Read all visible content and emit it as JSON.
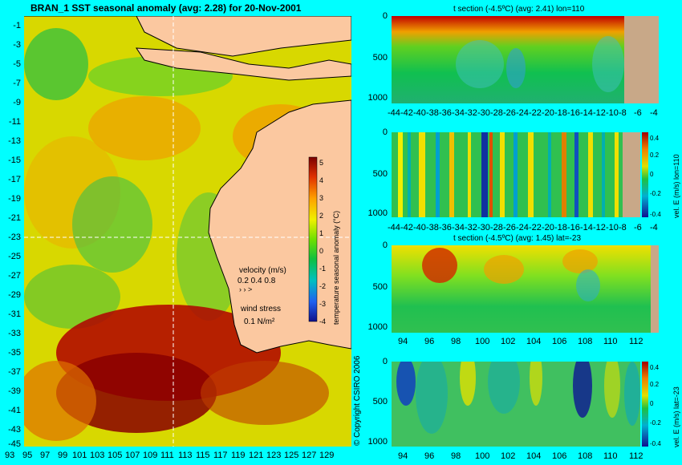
{
  "map": {
    "title": "BRAN_1 SST seasonal anomaly (avg: 2.28) for 20-Nov-2001",
    "lat_ticks": [
      "-1",
      "-3",
      "-5",
      "-7",
      "-9",
      "-11",
      "-13",
      "-15",
      "-17",
      "-19",
      "-21",
      "-23",
      "-25",
      "-27",
      "-29",
      "-31",
      "-33",
      "-35",
      "-37",
      "-39",
      "-41",
      "-43",
      "-45"
    ],
    "lon_ticks": [
      "93",
      "95",
      "97",
      "99",
      "101",
      "103",
      "105",
      "107",
      "109",
      "111",
      "113",
      "115",
      "117",
      "119",
      "121",
      "123",
      "125",
      "127",
      "129"
    ],
    "colorbar": {
      "label": "temperature seasonal anomaly (°C)",
      "ticks": [
        "5",
        "4",
        "3",
        "2",
        "1",
        "0",
        "-1",
        "-2",
        "-3",
        "-4"
      ]
    },
    "velocity_legend": {
      "title": "velocity (m/s)",
      "values": "0.2 0.4 0.8"
    },
    "wind_legend": {
      "title": "wind stress",
      "value": "0.1 N/m²"
    },
    "copyright": "© Copyright CSIRO 2006",
    "colors": {
      "land": "#fbc8a0",
      "warm": "#c00000",
      "neutral": "#d8e000",
      "cool": "#10c040",
      "cold": "#1a2a9a"
    }
  },
  "chart_data": [
    {
      "type": "heatmap",
      "title": "t section (-4.5ºC) (avg: 2.41) lon=110",
      "x_ticks": [
        "-44",
        "-42",
        "-40",
        "-38",
        "-36",
        "-34",
        "-32",
        "-30",
        "-28",
        "-26",
        "-24",
        "-22",
        "-20",
        "-18",
        "-16",
        "-14",
        "-12",
        "-10",
        "-8",
        "-6",
        "-4"
      ],
      "y_ticks": [
        "0",
        "500",
        "1000"
      ],
      "xlim": [
        -45,
        -3
      ],
      "ylim": [
        1050,
        0
      ]
    },
    {
      "type": "heatmap",
      "title": "",
      "x_ticks": [
        "-44",
        "-42",
        "-40",
        "-38",
        "-36",
        "-34",
        "-32",
        "-30",
        "-28",
        "-26",
        "-24",
        "-22",
        "-20",
        "-18",
        "-16",
        "-14",
        "-12",
        "-10",
        "-8",
        "-6",
        "-4"
      ],
      "y_ticks": [
        "0",
        "500",
        "1000"
      ],
      "colorbar_label": "vel. E (m/s) lon=110",
      "colorbar_ticks": [
        "0.4",
        "0.2",
        "0",
        "-0.2",
        "-0.4"
      ],
      "xlim": [
        -45,
        -3
      ],
      "ylim": [
        1050,
        0
      ]
    },
    {
      "type": "heatmap",
      "title": "t section (-4.5ºC) (avg: 1.45) lat=-23",
      "x_ticks": [
        "94",
        "96",
        "98",
        "100",
        "102",
        "104",
        "106",
        "108",
        "110",
        "112"
      ],
      "y_ticks": [
        "0",
        "500",
        "1000"
      ],
      "xlim": [
        93,
        114
      ],
      "ylim": [
        1050,
        0
      ]
    },
    {
      "type": "heatmap",
      "title": "",
      "x_ticks": [
        "94",
        "96",
        "98",
        "100",
        "102",
        "104",
        "106",
        "108",
        "110",
        "112"
      ],
      "y_ticks": [
        "0",
        "500",
        "1000"
      ],
      "colorbar_label": "vel. E (m/s) lat=-23",
      "colorbar_ticks": [
        "0.4",
        "0.2",
        "0",
        "-0.2",
        "-0.4"
      ],
      "xlim": [
        93,
        114
      ],
      "ylim": [
        1050,
        0
      ]
    }
  ]
}
